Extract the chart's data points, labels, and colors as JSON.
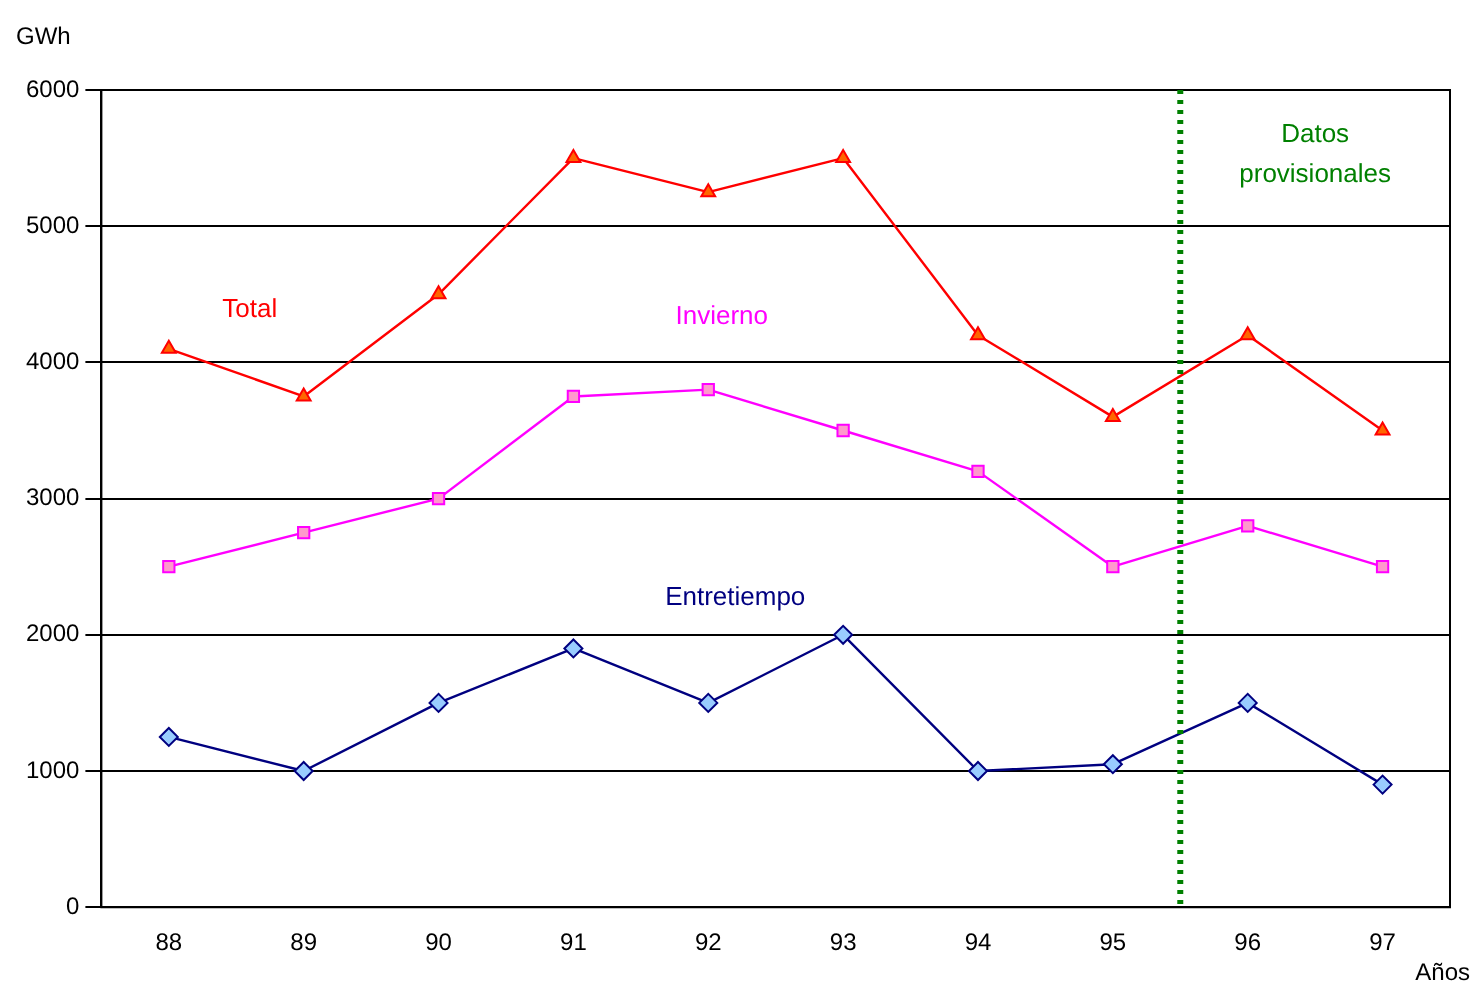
{
  "chart_data": {
    "type": "line",
    "ylabel": "GWh",
    "xlabel": "Años",
    "x": [
      88,
      89,
      90,
      91,
      92,
      93,
      94,
      95,
      96,
      97
    ],
    "xlim": [
      87.5,
      97.5
    ],
    "xticks": [
      88,
      89,
      90,
      91,
      92,
      93,
      94,
      95,
      96,
      97
    ],
    "ylim": [
      0,
      6000
    ],
    "yticks": [
      0,
      1000,
      2000,
      3000,
      4000,
      5000,
      6000
    ],
    "grid": "y",
    "legend": false,
    "line_style": "solid",
    "series": [
      {
        "name": "Total",
        "color": "#ff0000",
        "marker": "triangle",
        "values": [
          4100,
          3750,
          4500,
          5500,
          5250,
          5500,
          4200,
          3600,
          4200,
          3500
        ]
      },
      {
        "name": "Invierno",
        "color": "#ff00ff",
        "marker": "square",
        "values": [
          2500,
          2750,
          3000,
          3750,
          3800,
          3500,
          3200,
          2500,
          2800,
          2500
        ]
      },
      {
        "name": "Entretiempo",
        "color": "#000080",
        "marker": "diamond",
        "values": [
          1250,
          1000,
          1500,
          1900,
          1500,
          2000,
          1000,
          1050,
          1500,
          900
        ]
      }
    ],
    "ref_lines": [
      {
        "axis": "x",
        "value": 95.5,
        "label": "Datos provisionales",
        "color": "#008000",
        "line_style": "dotted"
      }
    ]
  }
}
